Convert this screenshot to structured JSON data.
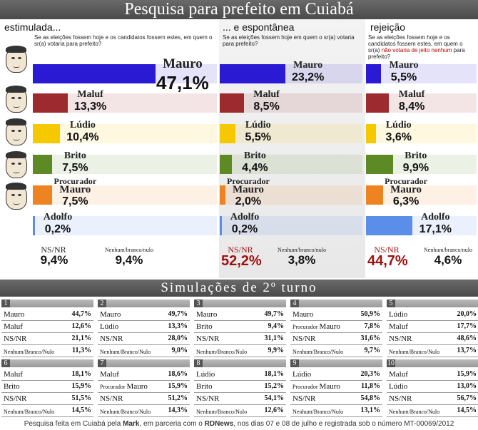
{
  "title": "Pesquisa para prefeito em Cuiabá",
  "chart_data": [
    {
      "type": "bar",
      "section": "estimulada...",
      "question": "Se as eleições fossem hoje e os candidatos fossem estes, em quem o sr(a) votaria para prefeito?",
      "categories": [
        "Mauro",
        "Maluf",
        "Lúdio",
        "Brito",
        "Procurador Mauro",
        "Adolfo"
      ],
      "values": [
        47.1,
        13.3,
        10.4,
        7.5,
        7.5,
        0.2
      ],
      "labels": [
        "47,1%",
        "13,3%",
        "10,4%",
        "7,5%",
        "7,5%",
        "0,2%"
      ],
      "ns_nr": {
        "label": "NS/NR",
        "value": "9,4%"
      },
      "nulo": {
        "label": "Nenhum/branco/nulo",
        "value": "9,4%"
      }
    },
    {
      "type": "bar",
      "section": "... e espontânea",
      "question": "Se as eleições fossem hoje em quem o sr(a) votaria para prefeito?",
      "categories": [
        "Mauro",
        "Maluf",
        "Lúdio",
        "Brito",
        "Procurador Mauro",
        "Adolfo"
      ],
      "values": [
        23.2,
        8.5,
        5.5,
        4.4,
        2.0,
        0.2
      ],
      "labels": [
        "23,2%",
        "8,5%",
        "5,5%",
        "4,4%",
        "2,0%",
        "0,2%"
      ],
      "ns_nr": {
        "label": "NS/NR",
        "value": "52,2%"
      },
      "nulo": {
        "label": "Nenhum/branco/nulo",
        "value": "3,8%"
      }
    },
    {
      "type": "bar",
      "section": "rejeição",
      "question_a": "Se as eleições fossem hoje e os candidatos fossem estes, em quem o sr(a)",
      "question_red": "não votaria de jeito nenhum",
      "question_b": "para prefeito?",
      "categories": [
        "Mauro",
        "Maluf",
        "Lúdio",
        "Brito",
        "Procurador Mauro",
        "Adolfo"
      ],
      "values": [
        5.5,
        8.4,
        3.6,
        9.9,
        6.3,
        17.1
      ],
      "labels": [
        "5,5%",
        "8,4%",
        "3,6%",
        "9,9%",
        "6,3%",
        "17,1%"
      ],
      "ns_nr": {
        "label": "NS/NR",
        "value": "44,7%"
      },
      "nulo": {
        "label": "Nenhum/branco/nulo",
        "value": "4,6%"
      }
    }
  ],
  "colors": {
    "Mauro": "#2a1ad4",
    "Maluf": "#9c2a2e",
    "Lúdio": "#f6c800",
    "Brito": "#5e8a25",
    "Procurador Mauro": "#ee8322",
    "Adolfo": "#5a8ee8",
    "highlight_red": "#a01010"
  },
  "simulations_title": "Simulações de 2º turno",
  "simulations": [
    {
      "n": "1",
      "rows": [
        [
          "Mauro",
          "44,7%"
        ],
        [
          "Maluf",
          "12,6%"
        ],
        [
          "NS/NR",
          "21,1%"
        ],
        [
          "Nenhum/Branco/Nulo",
          "11,3%"
        ]
      ]
    },
    {
      "n": "2",
      "rows": [
        [
          "Mauro",
          "49,7%"
        ],
        [
          "Lúdio",
          "13,3%"
        ],
        [
          "NS/NR",
          "28,0%"
        ],
        [
          "Nenhum/Branco/Nulo",
          "9,0%"
        ]
      ]
    },
    {
      "n": "3",
      "rows": [
        [
          "Mauro",
          "49,7%"
        ],
        [
          "Brito",
          "9,4%"
        ],
        [
          "NS/NR",
          "31,1%"
        ],
        [
          "Nenhum/Branco/Nulo",
          "9,9%"
        ]
      ]
    },
    {
      "n": "4",
      "rows": [
        [
          "Mauro",
          "50,9%"
        ],
        [
          "Procurador Mauro",
          "7,8%"
        ],
        [
          "NS/NR",
          "31,6%"
        ],
        [
          "Nenhum/Branco/Nulo",
          "9,7%"
        ]
      ]
    },
    {
      "n": "5",
      "rows": [
        [
          "Lúdio",
          "20,0%"
        ],
        [
          "Maluf",
          "17,7%"
        ],
        [
          "NS/NR",
          "48,6%"
        ],
        [
          "Nenhum/Branco/Nulo",
          "13,7%"
        ]
      ]
    },
    {
      "n": "6",
      "rows": [
        [
          "Maluf",
          "18,1%"
        ],
        [
          "Brito",
          "15,9%"
        ],
        [
          "NS/NR",
          "51,5%"
        ],
        [
          "Nenhum/Branco/Nulo",
          "14,5%"
        ]
      ]
    },
    {
      "n": "7",
      "rows": [
        [
          "Maluf",
          "18,6%"
        ],
        [
          "Procurador Mauro",
          "15,9%"
        ],
        [
          "NS/NR",
          "51,2%"
        ],
        [
          "Nenhum/Branco/Nulo",
          "14,3%"
        ]
      ]
    },
    {
      "n": "8",
      "rows": [
        [
          "Lúdio",
          "18,1%"
        ],
        [
          "Brito",
          "15,2%"
        ],
        [
          "NS/NR",
          "54,1%"
        ],
        [
          "Nenhum/Branco/Nulo",
          "12,6%"
        ]
      ]
    },
    {
      "n": "9",
      "rows": [
        [
          "Lúdio",
          "20,3%"
        ],
        [
          "Procurador Mauro",
          "11,8%"
        ],
        [
          "NS/NR",
          "54,8%"
        ],
        [
          "Nenhum/Branco/Nulo",
          "13,1%"
        ]
      ]
    },
    {
      "n": "10",
      "rows": [
        [
          "Maluf",
          "15,9%"
        ],
        [
          "Lúdio",
          "13,0%"
        ],
        [
          "NS/NR",
          "56,7%"
        ],
        [
          "Nenhum/Branco/Nulo",
          "14,5%"
        ]
      ]
    }
  ],
  "footer": {
    "a": "Pesquisa feita em Cuiabá pela ",
    "mark": "Mark",
    "b": ", em parceria com o ",
    "rdnews": "RDNews",
    "c": ", nos dias 07 e 08 de julho e registrada sob o número MT-00069/2012"
  }
}
